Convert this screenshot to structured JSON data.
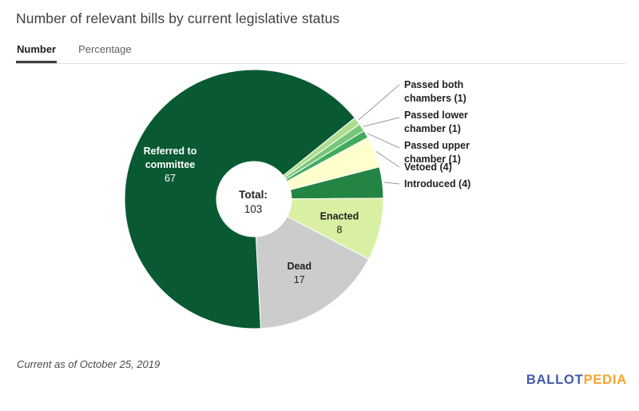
{
  "header": {
    "title": "Number of relevant bills by current legislative status"
  },
  "tabs": [
    {
      "label": "Number",
      "active": true
    },
    {
      "label": "Percentage",
      "active": false
    }
  ],
  "chart_data": {
    "type": "pie",
    "subtype": "donut",
    "title": "Number of relevant bills by current legislative status",
    "total_label": "Total:",
    "total_value": "103",
    "legend_position": "none",
    "start_angle": 177,
    "direction": "clockwise",
    "slices": [
      {
        "label": "Referred to committee",
        "value": 67,
        "color": "#095a33",
        "text_color": "#ffffff",
        "label_mode": "inside",
        "label_lines": [
          "Referred to",
          "committee",
          "67"
        ]
      },
      {
        "label": "Passed both chambers",
        "value": 1,
        "color": "#addd8e",
        "label_mode": "leader",
        "label_lines": [
          "Passed both",
          "chambers (1)"
        ]
      },
      {
        "label": "Passed lower chamber",
        "value": 1,
        "color": "#78c679",
        "label_mode": "leader",
        "label_lines": [
          "Passed lower",
          "chamber (1)"
        ]
      },
      {
        "label": "Passed upper chamber",
        "value": 1,
        "color": "#41ab5d",
        "label_mode": "leader",
        "label_lines": [
          "Passed upper",
          "chamber (1)"
        ]
      },
      {
        "label": "Vetoed",
        "value": 4,
        "color": "#ffffcc",
        "label_mode": "leader",
        "label_lines": [
          "Vetoed (4)"
        ]
      },
      {
        "label": "Introduced",
        "value": 4,
        "color": "#238443",
        "label_mode": "leader",
        "label_lines": [
          "Introduced (4)"
        ]
      },
      {
        "label": "Enacted",
        "value": 8,
        "color": "#d9f0a3",
        "text_color": "#212121",
        "label_mode": "inside",
        "label_lines": [
          "Enacted",
          "8"
        ]
      },
      {
        "label": "Dead",
        "value": 17,
        "color": "#cccccc",
        "text_color": "#212121",
        "label_mode": "inside",
        "label_lines": [
          "Dead",
          "17"
        ]
      }
    ]
  },
  "footer": {
    "note": "Current as of October 25, 2019"
  },
  "logo": {
    "part1": "BALLOT",
    "part2": "PEDIA",
    "part1_color": "#4259a9",
    "part2_color": "#f6a22d"
  }
}
